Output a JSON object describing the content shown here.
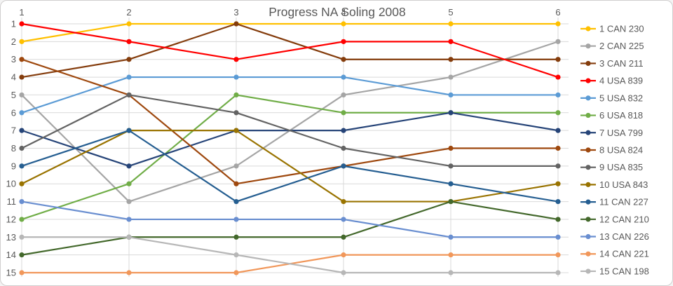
{
  "window": {
    "background": "#ffffff",
    "border_color": "#d0cece"
  },
  "chart_data": {
    "type": "line",
    "title": "Progress NA Soling 2008",
    "x_labels": [
      "1",
      "2",
      "3",
      "4",
      "5",
      "6"
    ],
    "y_tick_labels": [
      "1",
      "2",
      "3",
      "4",
      "5",
      "6",
      "7",
      "8",
      "9",
      "10",
      "11",
      "12",
      "13",
      "14",
      "15"
    ],
    "y_axis": {
      "min": 1,
      "max": 15,
      "inverted": true
    },
    "x_axis": {
      "labels_position": "top"
    },
    "grid": true,
    "legend_position": "right",
    "colors": {
      "grid": "#d9d9d9",
      "axis_text": "#595959",
      "title_text": "#595959"
    },
    "series": [
      {
        "legend_label": "1 CAN 230",
        "color": "#FFC000",
        "positions": [
          2,
          1,
          1,
          1,
          1,
          1
        ]
      },
      {
        "legend_label": "2 CAN 225",
        "color": "#A5A5A5",
        "positions": [
          5,
          11,
          9,
          5,
          4,
          2
        ]
      },
      {
        "legend_label": "3 CAN 211",
        "color": "#843C0C",
        "positions": [
          4,
          3,
          1,
          3,
          3,
          3
        ]
      },
      {
        "legend_label": "4 USA 839",
        "color": "#FF0000",
        "positions": [
          1,
          2,
          3,
          2,
          2,
          4
        ]
      },
      {
        "legend_label": "5 USA 832",
        "color": "#5B9BD5",
        "positions": [
          6,
          4,
          4,
          4,
          5,
          5
        ]
      },
      {
        "legend_label": "6 USA 818",
        "color": "#70AD47",
        "positions": [
          12,
          10,
          5,
          6,
          6,
          6
        ]
      },
      {
        "legend_label": "7 USA 799",
        "color": "#264478",
        "positions": [
          7,
          9,
          7,
          7,
          6,
          7
        ]
      },
      {
        "legend_label": "8 USA 824",
        "color": "#9E480E",
        "positions": [
          3,
          5,
          10,
          9,
          8,
          8
        ]
      },
      {
        "legend_label": "9 USA 835",
        "color": "#636363",
        "positions": [
          8,
          5,
          6,
          8,
          9,
          9
        ]
      },
      {
        "legend_label": "10 USA 843",
        "color": "#997300",
        "positions": [
          10,
          7,
          7,
          11,
          11,
          10
        ]
      },
      {
        "legend_label": "11 CAN 227",
        "color": "#255E91",
        "positions": [
          9,
          7,
          11,
          9,
          10,
          11
        ]
      },
      {
        "legend_label": "12 CAN 210",
        "color": "#43682B",
        "positions": [
          14,
          13,
          13,
          13,
          11,
          12
        ]
      },
      {
        "legend_label": "13 CAN 226",
        "color": "#698ED0",
        "positions": [
          11,
          12,
          12,
          12,
          13,
          13
        ]
      },
      {
        "legend_label": "14 CAN 221",
        "color": "#F1975A",
        "positions": [
          15,
          15,
          15,
          14,
          14,
          14
        ]
      },
      {
        "legend_label": "15 CAN 198",
        "color": "#B7B7B7",
        "positions": [
          13,
          13,
          14,
          15,
          15,
          15
        ]
      }
    ]
  }
}
